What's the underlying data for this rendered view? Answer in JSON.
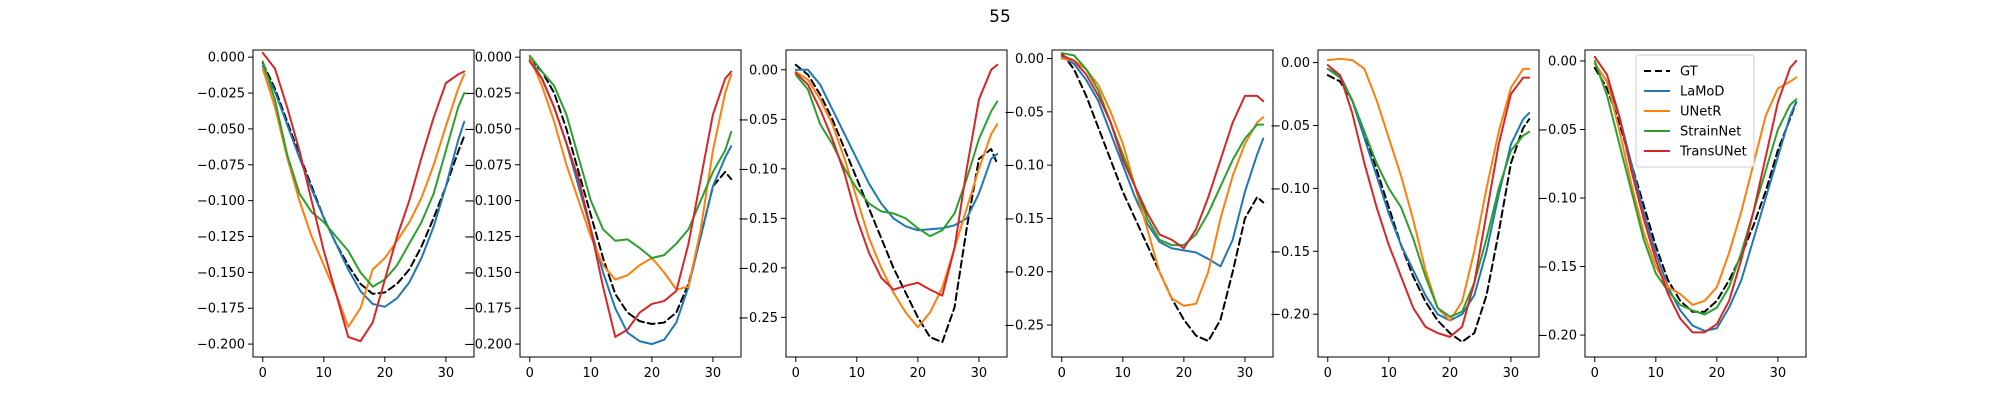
{
  "figure": {
    "title": "55"
  },
  "legend": {
    "location": "upper right (last panel)",
    "entries": [
      {
        "name": "GT",
        "color": "#000000",
        "dashed": true
      },
      {
        "name": "LaMoD",
        "color": "#1f77b4",
        "dashed": false
      },
      {
        "name": "UNetR",
        "color": "#ff7f0e",
        "dashed": false
      },
      {
        "name": "StrainNet",
        "color": "#2ca02c",
        "dashed": false
      },
      {
        "name": "TransUNet",
        "color": "#d62728",
        "dashed": false
      }
    ]
  },
  "chart_data": [
    {
      "type": "line",
      "title": "",
      "xlabel": "",
      "ylabel": "",
      "xlim": [
        -1.6,
        34.6
      ],
      "ylim": [
        -0.209,
        0.005
      ],
      "xticks": [
        0,
        10,
        20,
        30
      ],
      "xtick_labels": [
        "0",
        "10",
        "20",
        "30"
      ],
      "yticks": [
        0,
        -0.025,
        -0.05,
        -0.075,
        -0.1,
        -0.125,
        -0.15,
        -0.175,
        -0.2
      ],
      "ytick_labels": [
        "0.000",
        "−0.025",
        "−0.050",
        "−0.075",
        "−0.100",
        "−0.125",
        "−0.150",
        "−0.175",
        "−0.200"
      ],
      "grid": false,
      "x": [
        0,
        2,
        4,
        6,
        8,
        10,
        12,
        14,
        16,
        18,
        20,
        22,
        24,
        26,
        28,
        30,
        32,
        33
      ],
      "series": [
        {
          "name": "GT",
          "values": [
            -0.004,
            -0.022,
            -0.045,
            -0.068,
            -0.09,
            -0.112,
            -0.13,
            -0.145,
            -0.158,
            -0.165,
            -0.164,
            -0.158,
            -0.148,
            -0.132,
            -0.112,
            -0.09,
            -0.066,
            -0.055
          ]
        },
        {
          "name": "LaMoD",
          "values": [
            -0.006,
            -0.024,
            -0.047,
            -0.07,
            -0.092,
            -0.112,
            -0.13,
            -0.148,
            -0.163,
            -0.172,
            -0.174,
            -0.168,
            -0.157,
            -0.14,
            -0.118,
            -0.09,
            -0.058,
            -0.045
          ]
        },
        {
          "name": "UNetR",
          "values": [
            -0.008,
            -0.035,
            -0.07,
            -0.1,
            -0.125,
            -0.145,
            -0.165,
            -0.188,
            -0.175,
            -0.148,
            -0.14,
            -0.128,
            -0.115,
            -0.098,
            -0.075,
            -0.048,
            -0.022,
            -0.012
          ]
        },
        {
          "name": "StrainNet",
          "values": [
            -0.003,
            -0.03,
            -0.068,
            -0.095,
            -0.108,
            -0.115,
            -0.125,
            -0.135,
            -0.15,
            -0.16,
            -0.155,
            -0.145,
            -0.13,
            -0.115,
            -0.095,
            -0.065,
            -0.035,
            -0.025
          ]
        },
        {
          "name": "TransUNet",
          "values": [
            0.003,
            -0.008,
            -0.035,
            -0.065,
            -0.1,
            -0.135,
            -0.165,
            -0.195,
            -0.198,
            -0.185,
            -0.155,
            -0.125,
            -0.1,
            -0.07,
            -0.042,
            -0.018,
            -0.012,
            -0.01
          ]
        }
      ]
    },
    {
      "type": "line",
      "title": "",
      "xlabel": "",
      "ylabel": "",
      "xlim": [
        -1.6,
        34.6
      ],
      "ylim": [
        -0.209,
        0.005
      ],
      "xticks": [
        0,
        10,
        20,
        30
      ],
      "xtick_labels": [
        "0",
        "10",
        "20",
        "30"
      ],
      "yticks": [
        0,
        -0.025,
        -0.05,
        -0.075,
        -0.1,
        -0.125,
        -0.15,
        -0.175,
        -0.2
      ],
      "ytick_labels": [
        "0.000",
        "−0.025",
        "−0.050",
        "−0.075",
        "−0.100",
        "−0.125",
        "−0.150",
        "−0.175",
        "−0.200"
      ],
      "grid": false,
      "x": [
        0,
        2,
        4,
        6,
        8,
        10,
        12,
        14,
        16,
        18,
        20,
        22,
        24,
        26,
        28,
        30,
        32,
        33
      ],
      "series": [
        {
          "name": "GT",
          "values": [
            -0.002,
            -0.01,
            -0.025,
            -0.05,
            -0.08,
            -0.11,
            -0.14,
            -0.165,
            -0.178,
            -0.184,
            -0.186,
            -0.185,
            -0.178,
            -0.158,
            -0.125,
            -0.09,
            -0.08,
            -0.085
          ]
        },
        {
          "name": "LaMoD",
          "values": [
            -0.001,
            -0.015,
            -0.035,
            -0.06,
            -0.09,
            -0.12,
            -0.15,
            -0.175,
            -0.192,
            -0.198,
            -0.2,
            -0.197,
            -0.185,
            -0.16,
            -0.125,
            -0.09,
            -0.07,
            -0.062
          ]
        },
        {
          "name": "UNetR",
          "values": [
            0,
            -0.02,
            -0.045,
            -0.075,
            -0.1,
            -0.125,
            -0.145,
            -0.155,
            -0.152,
            -0.145,
            -0.14,
            -0.15,
            -0.162,
            -0.16,
            -0.12,
            -0.065,
            -0.025,
            -0.012
          ]
        },
        {
          "name": "StrainNet",
          "values": [
            0.001,
            -0.01,
            -0.02,
            -0.04,
            -0.07,
            -0.1,
            -0.12,
            -0.128,
            -0.127,
            -0.133,
            -0.14,
            -0.138,
            -0.13,
            -0.12,
            -0.1,
            -0.08,
            -0.065,
            -0.052
          ]
        },
        {
          "name": "TransUNet",
          "values": [
            -0.003,
            -0.015,
            -0.035,
            -0.06,
            -0.085,
            -0.12,
            -0.16,
            -0.195,
            -0.19,
            -0.178,
            -0.172,
            -0.17,
            -0.163,
            -0.13,
            -0.085,
            -0.04,
            -0.015,
            -0.01
          ]
        }
      ]
    },
    {
      "type": "line",
      "title": "",
      "xlabel": "",
      "ylabel": "",
      "xlim": [
        -1.6,
        34.6
      ],
      "ylim": [
        -0.29,
        0.02
      ],
      "xticks": [
        0,
        10,
        20,
        30
      ],
      "xtick_labels": [
        "0",
        "10",
        "20",
        "30"
      ],
      "yticks": [
        0,
        -0.05,
        -0.1,
        -0.15,
        -0.2,
        -0.25
      ],
      "ytick_labels": [
        "0.00",
        "−0.05",
        "−0.10",
        "−0.15",
        "−0.20",
        "−0.25"
      ],
      "grid": false,
      "x": [
        0,
        2,
        4,
        6,
        8,
        10,
        12,
        14,
        16,
        18,
        20,
        22,
        24,
        26,
        28,
        30,
        32,
        33
      ],
      "series": [
        {
          "name": "GT",
          "values": [
            0.005,
            -0.005,
            -0.025,
            -0.05,
            -0.08,
            -0.11,
            -0.14,
            -0.17,
            -0.2,
            -0.225,
            -0.25,
            -0.27,
            -0.275,
            -0.24,
            -0.16,
            -0.09,
            -0.08,
            -0.095
          ]
        },
        {
          "name": "LaMoD",
          "values": [
            0,
            0,
            -0.015,
            -0.04,
            -0.065,
            -0.09,
            -0.115,
            -0.135,
            -0.15,
            -0.158,
            -0.162,
            -0.161,
            -0.16,
            -0.157,
            -0.15,
            -0.125,
            -0.09,
            -0.085
          ]
        },
        {
          "name": "UNetR",
          "values": [
            -0.002,
            -0.01,
            -0.03,
            -0.055,
            -0.09,
            -0.13,
            -0.17,
            -0.2,
            -0.225,
            -0.245,
            -0.26,
            -0.245,
            -0.22,
            -0.18,
            -0.14,
            -0.1,
            -0.065,
            -0.055
          ]
        },
        {
          "name": "StrainNet",
          "values": [
            -0.005,
            -0.02,
            -0.055,
            -0.075,
            -0.1,
            -0.12,
            -0.135,
            -0.143,
            -0.145,
            -0.15,
            -0.16,
            -0.168,
            -0.162,
            -0.145,
            -0.11,
            -0.07,
            -0.042,
            -0.032
          ]
        },
        {
          "name": "TransUNet",
          "values": [
            -0.003,
            -0.015,
            -0.04,
            -0.07,
            -0.105,
            -0.15,
            -0.185,
            -0.21,
            -0.222,
            -0.218,
            -0.215,
            -0.222,
            -0.228,
            -0.18,
            -0.1,
            -0.03,
            0,
            0.005
          ]
        }
      ]
    },
    {
      "type": "line",
      "title": "",
      "xlabel": "",
      "ylabel": "",
      "xlim": [
        -1.6,
        34.6
      ],
      "ylim": [
        -0.28,
        0.008
      ],
      "xticks": [
        0,
        10,
        20,
        30
      ],
      "xtick_labels": [
        "0",
        "10",
        "20",
        "30"
      ],
      "yticks": [
        0,
        -0.05,
        -0.1,
        -0.15,
        -0.2,
        -0.25
      ],
      "ytick_labels": [
        "0.00",
        "−0.05",
        "−0.10",
        "−0.15",
        "−0.20",
        "−0.25"
      ],
      "grid": false,
      "x": [
        0,
        2,
        4,
        6,
        8,
        10,
        12,
        14,
        16,
        18,
        20,
        22,
        24,
        26,
        28,
        30,
        32,
        33
      ],
      "series": [
        {
          "name": "GT",
          "values": [
            0.005,
            -0.01,
            -0.035,
            -0.065,
            -0.095,
            -0.125,
            -0.15,
            -0.175,
            -0.2,
            -0.225,
            -0.245,
            -0.26,
            -0.265,
            -0.245,
            -0.2,
            -0.15,
            -0.13,
            -0.135
          ]
        },
        {
          "name": "LaMoD",
          "values": [
            0.002,
            -0.005,
            -0.02,
            -0.04,
            -0.07,
            -0.1,
            -0.13,
            -0.155,
            -0.172,
            -0.178,
            -0.18,
            -0.182,
            -0.188,
            -0.195,
            -0.17,
            -0.125,
            -0.09,
            -0.075
          ]
        },
        {
          "name": "UNetR",
          "values": [
            0,
            -0.002,
            -0.01,
            -0.025,
            -0.05,
            -0.08,
            -0.12,
            -0.16,
            -0.2,
            -0.225,
            -0.232,
            -0.23,
            -0.2,
            -0.15,
            -0.11,
            -0.08,
            -0.06,
            -0.055
          ]
        },
        {
          "name": "StrainNet",
          "values": [
            0.005,
            0.003,
            -0.01,
            -0.03,
            -0.06,
            -0.09,
            -0.12,
            -0.15,
            -0.17,
            -0.175,
            -0.175,
            -0.165,
            -0.145,
            -0.12,
            -0.095,
            -0.075,
            -0.062,
            -0.062
          ]
        },
        {
          "name": "TransUNet",
          "values": [
            0.003,
            -0.002,
            -0.015,
            -0.035,
            -0.06,
            -0.095,
            -0.12,
            -0.145,
            -0.165,
            -0.17,
            -0.178,
            -0.16,
            -0.13,
            -0.095,
            -0.06,
            -0.035,
            -0.035,
            -0.04
          ]
        }
      ]
    },
    {
      "type": "line",
      "title": "",
      "xlabel": "",
      "ylabel": "",
      "xlim": [
        -1.6,
        34.6
      ],
      "ylim": [
        -0.234,
        0.01
      ],
      "xticks": [
        0,
        10,
        20,
        30
      ],
      "xtick_labels": [
        "0",
        "10",
        "20",
        "30"
      ],
      "yticks": [
        0,
        -0.05,
        -0.1,
        -0.15,
        -0.2
      ],
      "ytick_labels": [
        "0.00",
        "−0.05",
        "−0.10",
        "−0.15",
        "−0.20"
      ],
      "grid": false,
      "x": [
        0,
        2,
        4,
        6,
        8,
        10,
        12,
        14,
        16,
        18,
        20,
        22,
        24,
        26,
        28,
        30,
        32,
        33
      ],
      "series": [
        {
          "name": "GT",
          "values": [
            -0.01,
            -0.015,
            -0.03,
            -0.055,
            -0.085,
            -0.115,
            -0.145,
            -0.17,
            -0.19,
            -0.205,
            -0.215,
            -0.222,
            -0.215,
            -0.185,
            -0.135,
            -0.08,
            -0.052,
            -0.045
          ]
        },
        {
          "name": "LaMoD",
          "values": [
            -0.005,
            -0.01,
            -0.03,
            -0.06,
            -0.09,
            -0.12,
            -0.145,
            -0.165,
            -0.185,
            -0.2,
            -0.205,
            -0.2,
            -0.185,
            -0.15,
            -0.105,
            -0.065,
            -0.045,
            -0.04
          ]
        },
        {
          "name": "UNetR",
          "values": [
            0.002,
            0.003,
            0.002,
            -0.005,
            -0.03,
            -0.06,
            -0.09,
            -0.125,
            -0.165,
            -0.195,
            -0.205,
            -0.19,
            -0.15,
            -0.1,
            -0.055,
            -0.02,
            -0.005,
            -0.005
          ]
        },
        {
          "name": "StrainNet",
          "values": [
            -0.005,
            -0.012,
            -0.03,
            -0.055,
            -0.08,
            -0.1,
            -0.115,
            -0.14,
            -0.17,
            -0.195,
            -0.202,
            -0.198,
            -0.175,
            -0.14,
            -0.1,
            -0.07,
            -0.058,
            -0.055
          ]
        },
        {
          "name": "TransUNet",
          "values": [
            -0.002,
            -0.01,
            -0.04,
            -0.08,
            -0.115,
            -0.145,
            -0.17,
            -0.195,
            -0.21,
            -0.215,
            -0.218,
            -0.21,
            -0.175,
            -0.12,
            -0.065,
            -0.025,
            -0.012,
            -0.012
          ]
        }
      ]
    },
    {
      "type": "line",
      "title": "",
      "xlabel": "",
      "ylabel": "",
      "xlim": [
        -1.6,
        34.6
      ],
      "ylim": [
        -0.216,
        0.008
      ],
      "xticks": [
        0,
        10,
        20,
        30
      ],
      "xtick_labels": [
        "0",
        "10",
        "20",
        "30"
      ],
      "yticks": [
        0,
        -0.05,
        -0.1,
        -0.15,
        -0.2
      ],
      "ytick_labels": [
        "0.00",
        "−0.05",
        "−0.10",
        "−0.15",
        "−0.20"
      ],
      "grid": false,
      "x": [
        0,
        2,
        4,
        6,
        8,
        10,
        12,
        14,
        16,
        18,
        20,
        22,
        24,
        26,
        28,
        30,
        32,
        33
      ],
      "series": [
        {
          "name": "GT",
          "values": [
            -0.005,
            -0.02,
            -0.045,
            -0.075,
            -0.105,
            -0.135,
            -0.16,
            -0.175,
            -0.183,
            -0.183,
            -0.175,
            -0.16,
            -0.142,
            -0.12,
            -0.095,
            -0.065,
            -0.042,
            -0.03
          ]
        },
        {
          "name": "LaMoD",
          "values": [
            -0.002,
            -0.015,
            -0.04,
            -0.075,
            -0.11,
            -0.14,
            -0.165,
            -0.182,
            -0.193,
            -0.197,
            -0.195,
            -0.18,
            -0.16,
            -0.13,
            -0.1,
            -0.07,
            -0.04,
            -0.03
          ]
        },
        {
          "name": "UNetR",
          "values": [
            -0.002,
            -0.015,
            -0.05,
            -0.09,
            -0.125,
            -0.15,
            -0.165,
            -0.17,
            -0.178,
            -0.175,
            -0.165,
            -0.14,
            -0.11,
            -0.075,
            -0.04,
            -0.02,
            -0.015,
            -0.012
          ]
        },
        {
          "name": "StrainNet",
          "values": [
            0,
            -0.025,
            -0.06,
            -0.095,
            -0.13,
            -0.155,
            -0.168,
            -0.178,
            -0.182,
            -0.185,
            -0.18,
            -0.165,
            -0.14,
            -0.11,
            -0.08,
            -0.05,
            -0.032,
            -0.028
          ]
        },
        {
          "name": "TransUNet",
          "values": [
            0.003,
            -0.01,
            -0.04,
            -0.08,
            -0.115,
            -0.145,
            -0.17,
            -0.188,
            -0.198,
            -0.198,
            -0.192,
            -0.175,
            -0.145,
            -0.11,
            -0.07,
            -0.03,
            -0.005,
            0
          ]
        }
      ]
    }
  ]
}
